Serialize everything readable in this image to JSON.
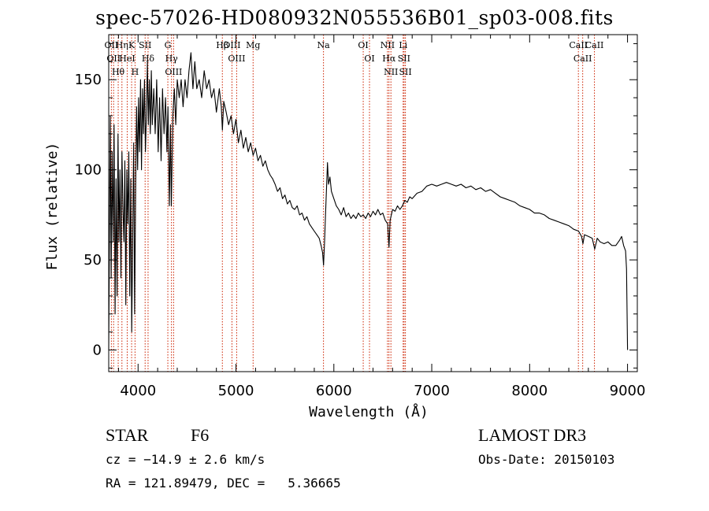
{
  "title": "spec-57026-HD080932N055536B01_sp03-008.fits",
  "info": {
    "class_label": "STAR",
    "subclass": "F6",
    "cz_text": "cz = −14.9 ± 2.6 km/s",
    "radec_text": "RA = 121.89479, DEC =   5.36665",
    "survey": "LAMOST DR3",
    "obs_date_text": "Obs-Date: 20150103"
  },
  "chart_data": {
    "type": "line",
    "title": "spec-57026-HD080932N055536B01_sp03-008.fits",
    "xlabel": "Wavelength (Å)",
    "ylabel": "Flux (relative)",
    "xlim": [
      3700,
      9100
    ],
    "ylim": [
      -12,
      175
    ],
    "xticks": [
      4000,
      5000,
      6000,
      7000,
      8000,
      9000
    ],
    "yticks": [
      0,
      50,
      100,
      150
    ],
    "grid": false,
    "line_color": "#000000",
    "marker_color": "#cc2200",
    "series": [
      {
        "name": "flux",
        "points": [
          [
            3700,
            0
          ],
          [
            3715,
            130
          ],
          [
            3725,
            40
          ],
          [
            3735,
            110
          ],
          [
            3745,
            60
          ],
          [
            3755,
            125
          ],
          [
            3765,
            20
          ],
          [
            3775,
            95
          ],
          [
            3785,
            30
          ],
          [
            3795,
            120
          ],
          [
            3805,
            60
          ],
          [
            3815,
            100
          ],
          [
            3825,
            40
          ],
          [
            3835,
            110
          ],
          [
            3845,
            80
          ],
          [
            3855,
            60
          ],
          [
            3865,
            105
          ],
          [
            3875,
            25
          ],
          [
            3885,
            100
          ],
          [
            3895,
            70
          ],
          [
            3905,
            110
          ],
          [
            3915,
            30
          ],
          [
            3925,
            95
          ],
          [
            3935,
            10
          ],
          [
            3945,
            60
          ],
          [
            3955,
            115
          ],
          [
            3965,
            20
          ],
          [
            3975,
            90
          ],
          [
            3985,
            135
          ],
          [
            3995,
            100
          ],
          [
            4005,
            140
          ],
          [
            4015,
            110
          ],
          [
            4025,
            150
          ],
          [
            4035,
            100
          ],
          [
            4045,
            145
          ],
          [
            4055,
            120
          ],
          [
            4065,
            150
          ],
          [
            4075,
            110
          ],
          [
            4085,
            130
          ],
          [
            4095,
            160
          ],
          [
            4105,
            125
          ],
          [
            4115,
            150
          ],
          [
            4125,
            120
          ],
          [
            4135,
            155
          ],
          [
            4145,
            125
          ],
          [
            4160,
            145
          ],
          [
            4175,
            120
          ],
          [
            4190,
            150
          ],
          [
            4205,
            110
          ],
          [
            4220,
            140
          ],
          [
            4235,
            105
          ],
          [
            4250,
            145
          ],
          [
            4265,
            120
          ],
          [
            4280,
            140
          ],
          [
            4295,
            110
          ],
          [
            4305,
            135
          ],
          [
            4320,
            80
          ],
          [
            4330,
            125
          ],
          [
            4340,
            80
          ],
          [
            4355,
            130
          ],
          [
            4370,
            145
          ],
          [
            4385,
            125
          ],
          [
            4400,
            150
          ],
          [
            4420,
            140
          ],
          [
            4440,
            150
          ],
          [
            4460,
            135
          ],
          [
            4480,
            150
          ],
          [
            4500,
            140
          ],
          [
            4520,
            155
          ],
          [
            4540,
            165
          ],
          [
            4560,
            145
          ],
          [
            4580,
            160
          ],
          [
            4600,
            145
          ],
          [
            4625,
            150
          ],
          [
            4650,
            140
          ],
          [
            4675,
            155
          ],
          [
            4700,
            145
          ],
          [
            4725,
            150
          ],
          [
            4750,
            140
          ],
          [
            4775,
            145
          ],
          [
            4800,
            132
          ],
          [
            4830,
            145
          ],
          [
            4850,
            135
          ],
          [
            4861,
            122
          ],
          [
            4875,
            138
          ],
          [
            4900,
            132
          ],
          [
            4925,
            125
          ],
          [
            4950,
            130
          ],
          [
            4975,
            120
          ],
          [
            5000,
            128
          ],
          [
            5025,
            115
          ],
          [
            5050,
            122
          ],
          [
            5075,
            112
          ],
          [
            5100,
            118
          ],
          [
            5125,
            110
          ],
          [
            5150,
            115
          ],
          [
            5175,
            108
          ],
          [
            5200,
            112
          ],
          [
            5225,
            105
          ],
          [
            5250,
            108
          ],
          [
            5275,
            102
          ],
          [
            5300,
            105
          ],
          [
            5325,
            100
          ],
          [
            5350,
            97
          ],
          [
            5375,
            95
          ],
          [
            5400,
            92
          ],
          [
            5425,
            88
          ],
          [
            5450,
            90
          ],
          [
            5475,
            84
          ],
          [
            5500,
            86
          ],
          [
            5525,
            81
          ],
          [
            5550,
            83
          ],
          [
            5575,
            79
          ],
          [
            5600,
            78
          ],
          [
            5625,
            80
          ],
          [
            5650,
            75
          ],
          [
            5675,
            76
          ],
          [
            5700,
            72
          ],
          [
            5725,
            74
          ],
          [
            5750,
            70
          ],
          [
            5775,
            68
          ],
          [
            5800,
            66
          ],
          [
            5825,
            64
          ],
          [
            5850,
            62
          ],
          [
            5870,
            58
          ],
          [
            5885,
            54
          ],
          [
            5895,
            47
          ],
          [
            5905,
            60
          ],
          [
            5915,
            75
          ],
          [
            5925,
            90
          ],
          [
            5935,
            104
          ],
          [
            5945,
            92
          ],
          [
            5960,
            96
          ],
          [
            5975,
            88
          ],
          [
            6000,
            84
          ],
          [
            6025,
            80
          ],
          [
            6050,
            78
          ],
          [
            6075,
            75
          ],
          [
            6100,
            79
          ],
          [
            6125,
            74
          ],
          [
            6150,
            76
          ],
          [
            6175,
            73
          ],
          [
            6200,
            75
          ],
          [
            6225,
            73
          ],
          [
            6250,
            76
          ],
          [
            6275,
            74
          ],
          [
            6300,
            75
          ],
          [
            6325,
            73
          ],
          [
            6350,
            76
          ],
          [
            6375,
            74
          ],
          [
            6400,
            77
          ],
          [
            6425,
            75
          ],
          [
            6450,
            78
          ],
          [
            6475,
            75
          ],
          [
            6500,
            76
          ],
          [
            6525,
            72
          ],
          [
            6550,
            70
          ],
          [
            6563,
            57
          ],
          [
            6575,
            72
          ],
          [
            6600,
            78
          ],
          [
            6625,
            77
          ],
          [
            6650,
            80
          ],
          [
            6675,
            78
          ],
          [
            6700,
            80
          ],
          [
            6725,
            83
          ],
          [
            6750,
            82
          ],
          [
            6775,
            85
          ],
          [
            6800,
            84
          ],
          [
            6850,
            87
          ],
          [
            6900,
            88
          ],
          [
            6950,
            91
          ],
          [
            7000,
            92
          ],
          [
            7050,
            91
          ],
          [
            7100,
            92
          ],
          [
            7150,
            93
          ],
          [
            7200,
            92
          ],
          [
            7250,
            91
          ],
          [
            7300,
            92
          ],
          [
            7350,
            90
          ],
          [
            7400,
            91
          ],
          [
            7450,
            89
          ],
          [
            7500,
            90
          ],
          [
            7550,
            88
          ],
          [
            7600,
            89
          ],
          [
            7650,
            87
          ],
          [
            7700,
            85
          ],
          [
            7750,
            84
          ],
          [
            7800,
            83
          ],
          [
            7850,
            82
          ],
          [
            7900,
            80
          ],
          [
            7950,
            79
          ],
          [
            8000,
            78
          ],
          [
            8050,
            76
          ],
          [
            8100,
            76
          ],
          [
            8150,
            75
          ],
          [
            8200,
            73
          ],
          [
            8250,
            72
          ],
          [
            8300,
            71
          ],
          [
            8350,
            70
          ],
          [
            8400,
            69
          ],
          [
            8450,
            67
          ],
          [
            8500,
            66
          ],
          [
            8530,
            63
          ],
          [
            8545,
            59
          ],
          [
            8560,
            64
          ],
          [
            8600,
            63
          ],
          [
            8640,
            62
          ],
          [
            8665,
            56
          ],
          [
            8690,
            62
          ],
          [
            8720,
            60
          ],
          [
            8760,
            59
          ],
          [
            8800,
            60
          ],
          [
            8840,
            58
          ],
          [
            8880,
            58
          ],
          [
            8920,
            61
          ],
          [
            8940,
            63
          ],
          [
            8960,
            58
          ],
          [
            8980,
            55
          ],
          [
            8990,
            45
          ],
          [
            9000,
            0
          ]
        ]
      }
    ],
    "line_markers": [
      {
        "wavelength": 3727,
        "label": "OII"
      },
      {
        "wavelength": 3750,
        "label": "OII"
      },
      {
        "wavelength": 3797,
        "label": "Hθ"
      },
      {
        "wavelength": 3835,
        "label": "Hη"
      },
      {
        "wavelength": 3889,
        "label": "HeI"
      },
      {
        "wavelength": 3934,
        "label": "K"
      },
      {
        "wavelength": 3969,
        "label": "H"
      },
      {
        "wavelength": 4072,
        "label": "SII"
      },
      {
        "wavelength": 4102,
        "label": "Hδ"
      },
      {
        "wavelength": 4304,
        "label": "G"
      },
      {
        "wavelength": 4341,
        "label": "Hγ"
      },
      {
        "wavelength": 4363,
        "label": "OIII"
      },
      {
        "wavelength": 4861,
        "label": "Hβ"
      },
      {
        "wavelength": 4959,
        "label": "OIII"
      },
      {
        "wavelength": 5007,
        "label": "OIII"
      },
      {
        "wavelength": 5175,
        "label": "Mg"
      },
      {
        "wavelength": 5894,
        "label": "Na"
      },
      {
        "wavelength": 6300,
        "label": "OI"
      },
      {
        "wavelength": 6364,
        "label": "OI"
      },
      {
        "wavelength": 6548,
        "label": "NII"
      },
      {
        "wavelength": 6563,
        "label": "Hα"
      },
      {
        "wavelength": 6583,
        "label": "NII"
      },
      {
        "wavelength": 6708,
        "label": "Li"
      },
      {
        "wavelength": 6717,
        "label": "SII"
      },
      {
        "wavelength": 6731,
        "label": "SII"
      },
      {
        "wavelength": 8498,
        "label": "CaII"
      },
      {
        "wavelength": 8542,
        "label": "CaII"
      },
      {
        "wavelength": 8662,
        "label": "CaII"
      }
    ]
  }
}
